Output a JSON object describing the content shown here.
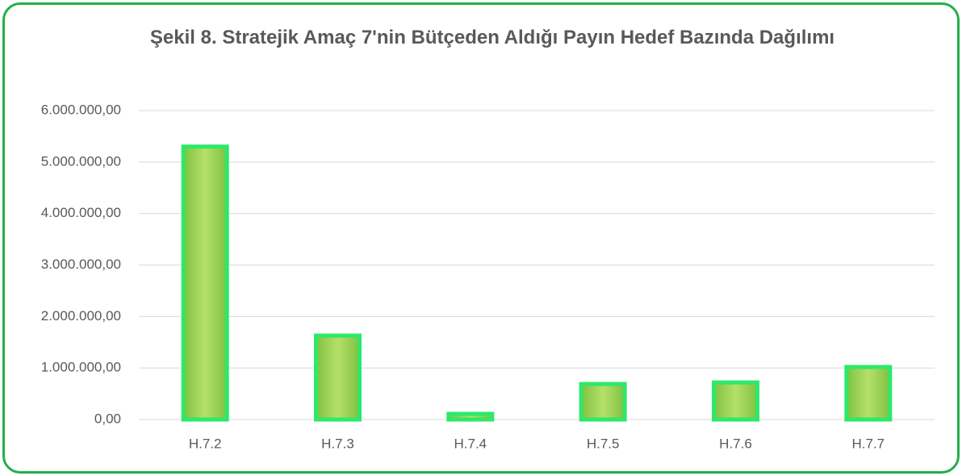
{
  "chart_data": {
    "type": "bar",
    "title": "Şekil 8. Stratejik Amaç 7'nin Bütçeden Aldığı Payın Hedef Bazında Dağılımı",
    "categories": [
      "H.7.2",
      "H.7.3",
      "H.7.4",
      "H.7.5",
      "H.7.6",
      "H.7.7"
    ],
    "values": [
      5300000,
      1630000,
      110000,
      690000,
      720000,
      1020000
    ],
    "color": "#92d050",
    "ylim": [
      0,
      6000000
    ],
    "yticks": [
      {
        "value": 0,
        "label": "0,00"
      },
      {
        "value": 1000000,
        "label": "1.000.000,00"
      },
      {
        "value": 2000000,
        "label": "2.000.000,00"
      },
      {
        "value": 3000000,
        "label": "3.000.000,00"
      },
      {
        "value": 4000000,
        "label": "4.000.000,00"
      },
      {
        "value": 5000000,
        "label": "5.000.000,00"
      },
      {
        "value": 6000000,
        "label": "6.000.000,00"
      }
    ],
    "grid": true
  }
}
